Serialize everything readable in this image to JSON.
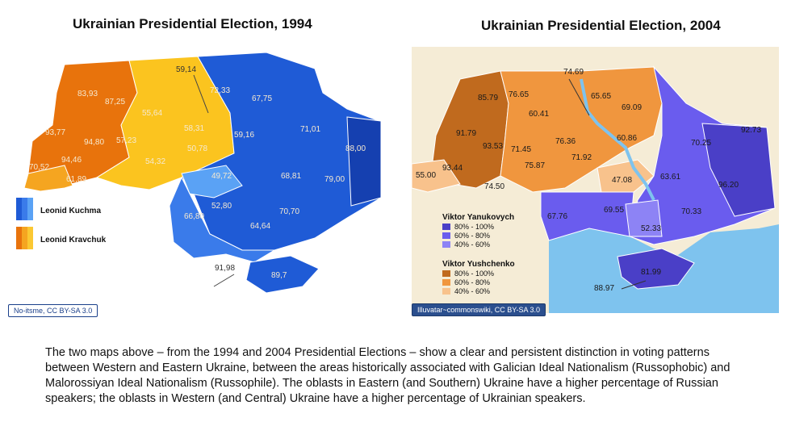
{
  "left_map": {
    "title": "Ukrainian Presidential Election, 1994",
    "credit": "No-itsme, CC BY-SA 3.0",
    "legend": [
      {
        "label": "Leonid Kuchma",
        "colors": [
          "#1f5bd6",
          "#3a7bea",
          "#5aa2f5"
        ]
      },
      {
        "label": "Leonid Kravchuk",
        "colors": [
          "#e8730c",
          "#f5a520",
          "#fbc832"
        ]
      }
    ],
    "values": [
      "59,14",
      "72,33",
      "67,75",
      "83,93",
      "87,25",
      "55,64",
      "58,31",
      "59,16",
      "71,01",
      "93,77",
      "57,23",
      "50,78",
      "88,00",
      "94,80",
      "94,46",
      "54,32",
      "49,72",
      "68,81",
      "70,52",
      "61,89",
      "79,00",
      "52,80",
      "66,80",
      "70,70",
      "64,64",
      "89,7",
      "91,98"
    ]
  },
  "right_map": {
    "title": "Ukrainian Presidential Election, 2004",
    "credit": "Illuvatar~commonswiki, CC BY-SA 3.0",
    "legend": [
      {
        "candidate": "Viktor Yanukovych",
        "ranges": [
          "80% - 100%",
          "60% - 80%",
          "40% - 60%"
        ],
        "colors": [
          "#4a3fc7",
          "#6a5cee",
          "#8d83f5"
        ]
      },
      {
        "candidate": "Viktor Yushchenko",
        "ranges": [
          "80% - 100%",
          "60% - 80%",
          "40% - 60%"
        ],
        "colors": [
          "#c06a1e",
          "#f0963e",
          "#f8c28c"
        ]
      }
    ],
    "values": [
      "74.69",
      "85.79",
      "76.65",
      "65.65",
      "60.41",
      "69.09",
      "91.79",
      "76.36",
      "60.86",
      "93.53",
      "71.45",
      "71.92",
      "70.25",
      "92.73",
      "55.00",
      "93.44",
      "75.87",
      "47.08",
      "63.61",
      "96.20",
      "74.50",
      "67.76",
      "69.55",
      "70.33",
      "52.33",
      "81.99",
      "88.97"
    ]
  },
  "caption": "The two maps above – from the 1994 and 2004 Presidential Elections – show a clear and persistent distinction in voting patterns between Western and Eastern Ukraine, between the areas historically associated with Galician Ideal Nationalism (Russophobic) and Malorossiyan Ideal Nationalism (Russophile). The oblasts in Eastern (and Southern) Ukraine have a higher percentage of Russian speakers; the oblasts in Western (and Central) Ukraine have a higher percentage of Ukrainian speakers."
}
